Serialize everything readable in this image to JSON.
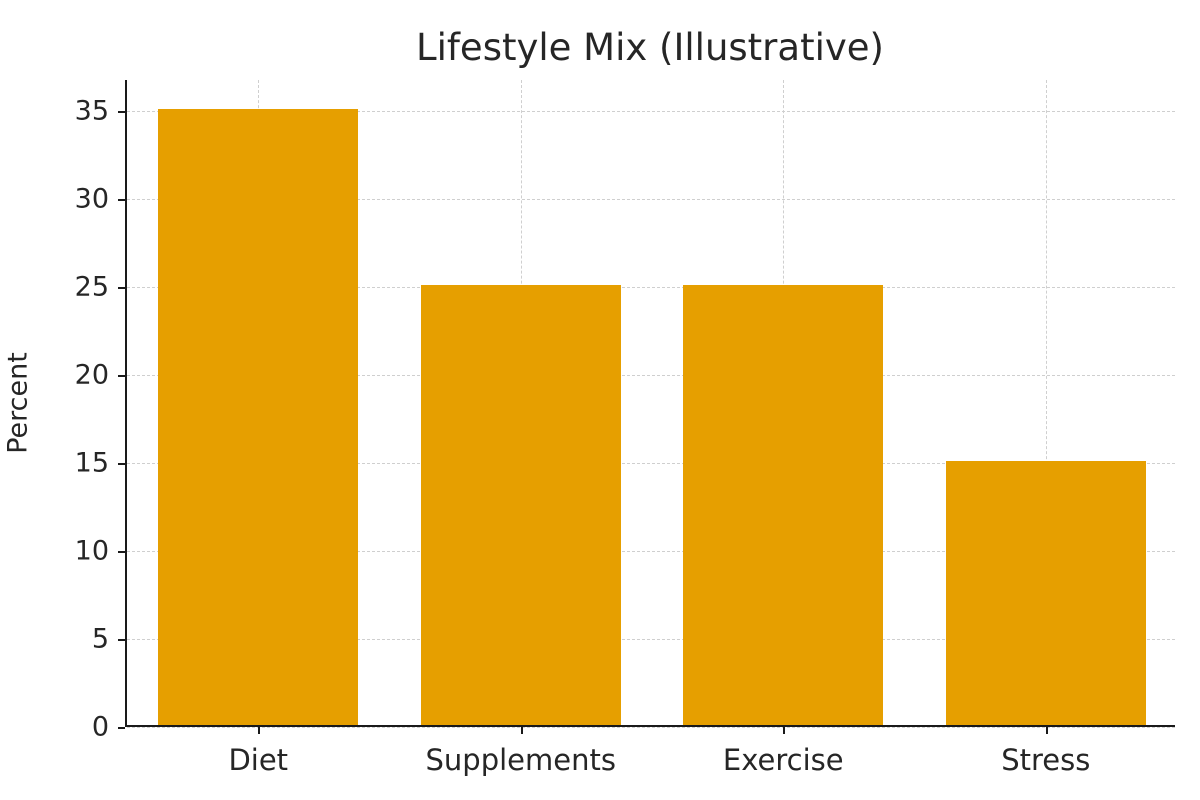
{
  "chart_data": {
    "type": "bar",
    "title": "Lifestyle Mix (Illustrative)",
    "categories": [
      "Diet",
      "Supplements",
      "Exercise",
      "Stress"
    ],
    "values": [
      35,
      25,
      25,
      15
    ],
    "xlabel": "",
    "ylabel": "Percent",
    "ylim": [
      0,
      36.75
    ],
    "yticks": [
      0,
      5,
      10,
      15,
      20,
      25,
      30,
      35
    ],
    "bar_color": "#E69F00",
    "axis_color": "#1a1a1a",
    "grid_color": "#cfcfcf",
    "grid_style": "dashed",
    "grid": "both",
    "legend": "none",
    "background": "#ffffff"
  }
}
